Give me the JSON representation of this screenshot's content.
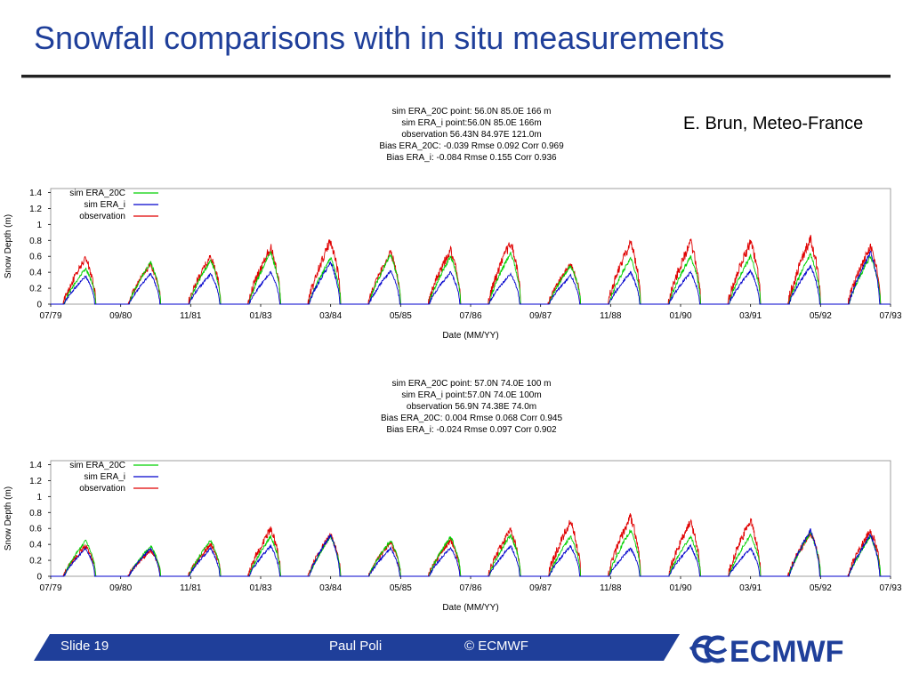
{
  "slide": {
    "title": "Snowfall comparisons with in situ measurements",
    "credit": "E. Brun, Meteo-France"
  },
  "footer": {
    "slide_label": "Slide 19",
    "author": "Paul Poli",
    "copyright": "© ECMWF",
    "logo_text": "ECMWF"
  },
  "colors": {
    "title": "#1f3f9a",
    "footer_bar": "#1f3f9a",
    "sim_era20c": "#00d000",
    "sim_erai": "#0000cc",
    "observation": "#e00000"
  },
  "chart_data": [
    {
      "type": "line",
      "header": [
        "sim ERA_20C point: 56.0N 85.0E 166 m",
        "sim ERA_i point:56.0N 85.0E 166m",
        "observation 56.43N 84.97E 121.0m",
        "Bias ERA_20C:  -0.039  Rmse  0.092  Corr  0.969",
        "Bias ERA_i:  -0.084  Rmse  0.155  Corr  0.936"
      ],
      "xlabel": "Date (MM/YY)",
      "ylabel": "Snow Depth (m)",
      "x_tick_labels": [
        "07/79",
        "09/80",
        "11/81",
        "01/83",
        "03/84",
        "05/85",
        "07/86",
        "09/87",
        "11/88",
        "01/90",
        "03/91",
        "05/92",
        "07/93"
      ],
      "x_range": [
        "07/79",
        "07/93"
      ],
      "y_ticks": [
        "0",
        "0.2",
        "0.4",
        "0.6",
        "0.8",
        "1",
        "1.2",
        "1.4"
      ],
      "ylim": [
        0,
        1.45
      ],
      "legend_position": "top-left",
      "winter_peak_dates": [
        "02/80",
        "03/81",
        "03/82",
        "03/83",
        "03/84",
        "03/85",
        "03/86",
        "03/87",
        "03/88",
        "03/89",
        "03/90",
        "03/91",
        "03/92",
        "03/93"
      ],
      "series": [
        {
          "name": "sim ERA_20C",
          "color": "#00d000",
          "peaks": [
            0.45,
            0.52,
            0.55,
            0.65,
            0.58,
            0.62,
            0.6,
            0.65,
            0.48,
            0.58,
            0.6,
            0.6,
            0.62,
            0.6
          ]
        },
        {
          "name": "sim ERA_i",
          "color": "#0000cc",
          "peaks": [
            0.35,
            0.38,
            0.38,
            0.4,
            0.52,
            0.42,
            0.4,
            0.38,
            0.36,
            0.4,
            0.4,
            0.42,
            0.48,
            0.65
          ]
        },
        {
          "name": "observation",
          "color": "#e00000",
          "peaks": [
            0.58,
            0.5,
            0.6,
            0.72,
            0.8,
            0.65,
            0.68,
            0.78,
            0.5,
            0.78,
            0.78,
            0.78,
            0.82,
            0.72
          ]
        }
      ]
    },
    {
      "type": "line",
      "header": [
        "sim ERA_20C point: 57.0N 74.0E 100 m",
        "sim ERA_i point:57.0N 74.0E 100m",
        "observation 56.9N 74.38E 74.0m",
        "Bias ERA_20C:   0.004  Rmse  0.068  Corr  0.945",
        "Bias ERA_i:  -0.024  Rmse  0.097  Corr  0.902"
      ],
      "xlabel": "Date (MM/YY)",
      "ylabel": "Snow Depth (m)",
      "x_tick_labels": [
        "07/79",
        "09/80",
        "11/81",
        "01/83",
        "03/84",
        "05/85",
        "07/86",
        "09/87",
        "11/88",
        "01/90",
        "03/91",
        "05/92",
        "07/93"
      ],
      "x_range": [
        "07/79",
        "07/93"
      ],
      "y_ticks": [
        "0",
        "0.2",
        "0.4",
        "0.6",
        "0.8",
        "1",
        "1.2",
        "1.4"
      ],
      "ylim": [
        0,
        1.45
      ],
      "legend_position": "top-left",
      "winter_peak_dates": [
        "02/80",
        "03/81",
        "03/82",
        "03/83",
        "03/84",
        "03/85",
        "03/86",
        "03/87",
        "03/88",
        "03/89",
        "03/90",
        "03/91",
        "03/92",
        "03/93"
      ],
      "series": [
        {
          "name": "sim ERA_20C",
          "color": "#00d000",
          "peaks": [
            0.45,
            0.38,
            0.45,
            0.5,
            0.5,
            0.45,
            0.5,
            0.52,
            0.5,
            0.58,
            0.5,
            0.52,
            0.55,
            0.5
          ]
        },
        {
          "name": "sim ERA_i",
          "color": "#0000cc",
          "peaks": [
            0.35,
            0.35,
            0.35,
            0.38,
            0.52,
            0.35,
            0.36,
            0.38,
            0.38,
            0.35,
            0.38,
            0.35,
            0.58,
            0.52
          ]
        },
        {
          "name": "observation",
          "color": "#e00000",
          "peaks": [
            0.38,
            0.32,
            0.4,
            0.6,
            0.52,
            0.42,
            0.45,
            0.58,
            0.68,
            0.75,
            0.68,
            0.7,
            0.55,
            0.58
          ]
        }
      ]
    }
  ]
}
